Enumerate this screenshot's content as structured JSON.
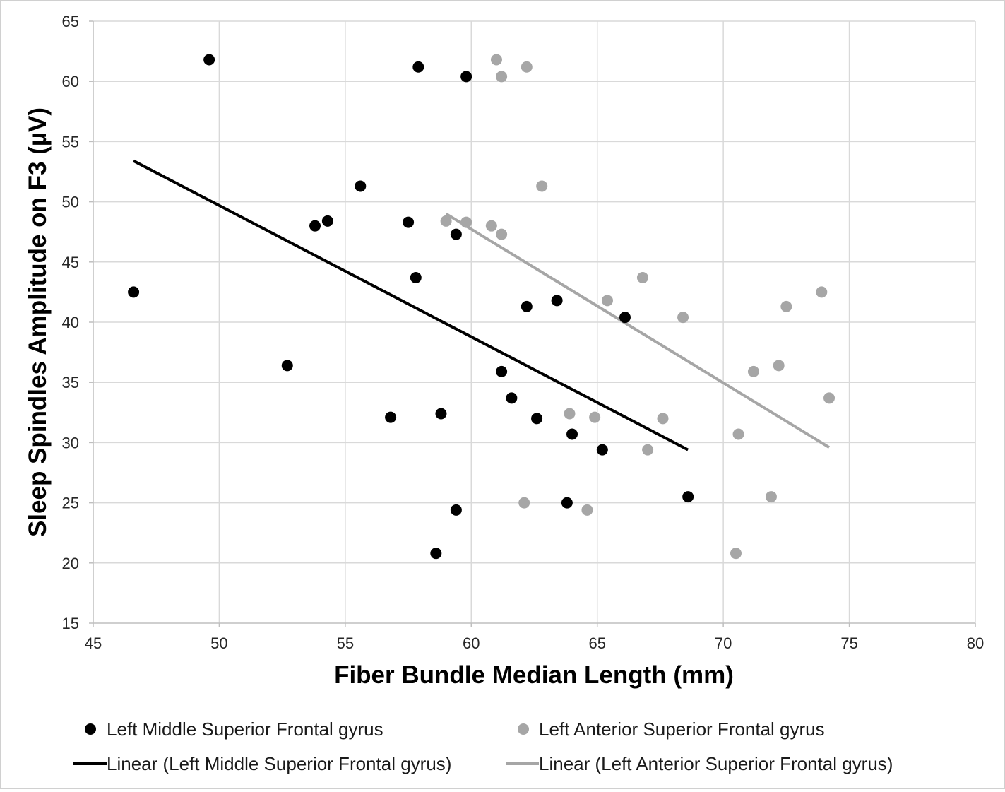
{
  "chart_data": {
    "type": "scatter",
    "xlabel": "Fiber Bundle Median Length (mm)",
    "ylabel": "Sleep Spindles Amplitude on F3 (µV)",
    "xlim": [
      45,
      80
    ],
    "ylim": [
      15,
      65
    ],
    "xticks": [
      45,
      50,
      55,
      60,
      65,
      70,
      75,
      80
    ],
    "yticks": [
      15,
      20,
      25,
      30,
      35,
      40,
      45,
      50,
      55,
      60,
      65
    ],
    "grid": true,
    "legend_position": "bottom",
    "series": [
      {
        "name": "Left Middle Superior Frontal gyrus",
        "color": "#000000",
        "points": [
          [
            46.6,
            42.5
          ],
          [
            49.6,
            61.8
          ],
          [
            52.7,
            36.4
          ],
          [
            53.8,
            48.0
          ],
          [
            54.3,
            48.4
          ],
          [
            55.6,
            51.3
          ],
          [
            56.8,
            32.1
          ],
          [
            57.5,
            48.3
          ],
          [
            57.8,
            43.7
          ],
          [
            57.9,
            61.2
          ],
          [
            58.6,
            20.8
          ],
          [
            58.8,
            32.4
          ],
          [
            59.4,
            47.3
          ],
          [
            59.4,
            24.4
          ],
          [
            59.8,
            60.4
          ],
          [
            61.2,
            35.9
          ],
          [
            61.6,
            33.7
          ],
          [
            62.2,
            41.3
          ],
          [
            62.6,
            32.0
          ],
          [
            63.4,
            41.8
          ],
          [
            63.8,
            25.0
          ],
          [
            64.0,
            30.7
          ],
          [
            65.2,
            29.4
          ],
          [
            66.1,
            40.4
          ],
          [
            68.6,
            25.5
          ]
        ]
      },
      {
        "name": "Left Anterior Superior Frontal gyrus",
        "color": "#a6a6a6",
        "points": [
          [
            59.0,
            48.4
          ],
          [
            59.8,
            48.3
          ],
          [
            61.0,
            61.8
          ],
          [
            61.2,
            60.4
          ],
          [
            60.8,
            48.0
          ],
          [
            61.2,
            47.3
          ],
          [
            62.1,
            25.0
          ],
          [
            62.2,
            61.2
          ],
          [
            62.8,
            51.3
          ],
          [
            63.9,
            32.4
          ],
          [
            64.6,
            24.4
          ],
          [
            64.9,
            32.1
          ],
          [
            65.4,
            41.8
          ],
          [
            66.8,
            43.7
          ],
          [
            67.0,
            29.4
          ],
          [
            67.6,
            32.0
          ],
          [
            68.4,
            40.4
          ],
          [
            70.5,
            20.8
          ],
          [
            70.6,
            30.7
          ],
          [
            71.2,
            35.9
          ],
          [
            71.9,
            25.5
          ],
          [
            72.2,
            36.4
          ],
          [
            72.5,
            41.3
          ],
          [
            73.9,
            42.5
          ],
          [
            74.2,
            33.7
          ]
        ]
      }
    ],
    "trendlines": [
      {
        "name": "Linear (Left Middle Superior Frontal gyrus)",
        "color": "#000000",
        "x": [
          46.6,
          68.6
        ],
        "y": [
          53.4,
          29.4
        ]
      },
      {
        "name": "Linear (Left Anterior Superior Frontal gyrus)",
        "color": "#a6a6a6",
        "x": [
          59.0,
          74.2
        ],
        "y": [
          49.0,
          29.6
        ]
      }
    ]
  }
}
